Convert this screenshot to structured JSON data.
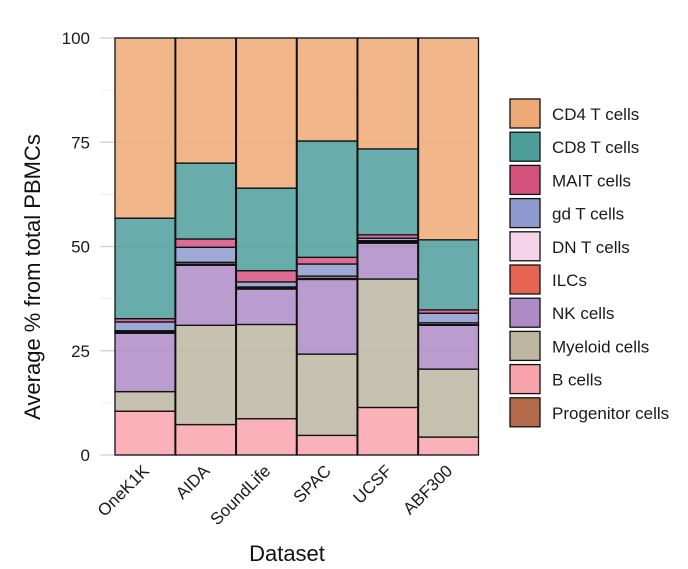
{
  "chart_data": {
    "type": "bar",
    "subtype": "stacked-alluvial",
    "xlabel": "Dataset",
    "ylabel": "Average % from total PBMCs",
    "ylim": [
      0,
      100
    ],
    "yticks": [
      0,
      25,
      50,
      75,
      100
    ],
    "grid": true,
    "legend_position": "right",
    "categories": [
      "OneK1K",
      "AIDA",
      "SoundLife",
      "SPAC",
      "UCSF",
      "ABF300"
    ],
    "series": [
      {
        "name": "Progenitor cells",
        "color": "#B5694B",
        "values": [
          0.0,
          0.0,
          0.0,
          0.0,
          0.0,
          0.0
        ]
      },
      {
        "name": "B cells",
        "color": "#F9A3AB",
        "values": [
          10.5,
          7.3,
          8.7,
          4.7,
          11.4,
          4.3
        ]
      },
      {
        "name": "Myeloid cells",
        "color": "#BDB7A2",
        "values": [
          4.7,
          23.8,
          22.6,
          19.5,
          30.8,
          16.3
        ]
      },
      {
        "name": "NK cells",
        "color": "#AE8BC6",
        "values": [
          14.0,
          14.4,
          8.5,
          17.9,
          8.6,
          10.5
        ]
      },
      {
        "name": "ILCs",
        "color": "#E56352",
        "values": [
          0.3,
          0.3,
          0.2,
          0.3,
          0.3,
          0.2
        ]
      },
      {
        "name": "DN T cells",
        "color": "#F5D3E8",
        "values": [
          0.3,
          0.4,
          0.3,
          0.5,
          0.3,
          0.4
        ]
      },
      {
        "name": "gd T cells",
        "color": "#8E9ACE",
        "values": [
          2.1,
          3.6,
          1.2,
          2.9,
          0.6,
          2.3
        ]
      },
      {
        "name": "MAIT cells",
        "color": "#D4537E",
        "values": [
          0.8,
          2.0,
          2.7,
          1.6,
          0.8,
          0.8
        ]
      },
      {
        "name": "CD8 T cells",
        "color": "#4E9E9C",
        "values": [
          24.1,
          18.2,
          19.8,
          27.9,
          20.6,
          16.8
        ]
      },
      {
        "name": "CD4 T cells",
        "color": "#EEAA76",
        "values": [
          43.2,
          30.0,
          36.0,
          24.7,
          26.6,
          48.4
        ]
      }
    ]
  }
}
